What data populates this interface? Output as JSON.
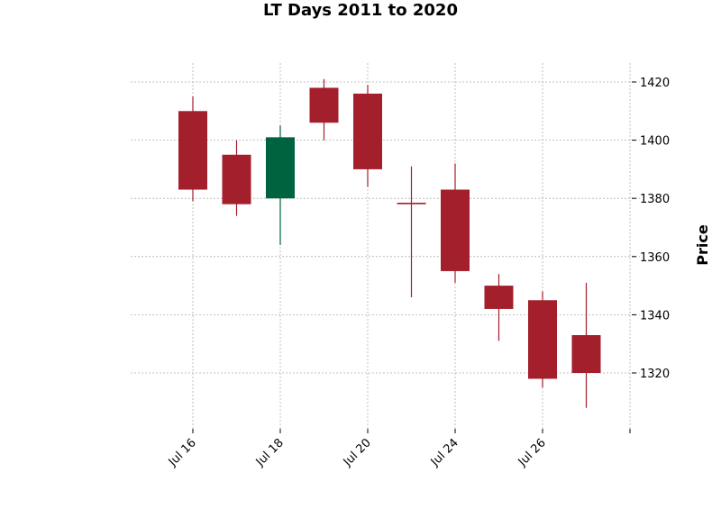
{
  "chart_data": {
    "type": "candlestick",
    "title": "LT Days 2011 to 2020",
    "ylabel": "Price",
    "xlabel": "",
    "ylim": [
      1302,
      1428
    ],
    "yticks": [
      1320,
      1340,
      1360,
      1380,
      1400,
      1420
    ],
    "grid": true,
    "colors": {
      "up": "#006340",
      "down": "#a21f2b"
    },
    "xticks": [
      {
        "index": 0,
        "label": "Jul 16"
      },
      {
        "index": 2,
        "label": "Jul 18"
      },
      {
        "index": 4,
        "label": "Jul 20"
      },
      {
        "index": 6,
        "label": "Jul 24"
      },
      {
        "index": 8,
        "label": "Jul 26"
      },
      {
        "index": 10,
        "label": ""
      }
    ],
    "candles": [
      {
        "open": 1410,
        "high": 1415,
        "low": 1379,
        "close": 1383
      },
      {
        "open": 1395,
        "high": 1400,
        "low": 1374,
        "close": 1378
      },
      {
        "open": 1380,
        "high": 1405,
        "low": 1364,
        "close": 1401
      },
      {
        "open": 1418,
        "high": 1421,
        "low": 1400,
        "close": 1406
      },
      {
        "open": 1416,
        "high": 1419,
        "low": 1384,
        "close": 1390
      },
      {
        "open": 1378.5,
        "high": 1391,
        "low": 1346,
        "close": 1378
      },
      {
        "open": 1383,
        "high": 1392,
        "low": 1351,
        "close": 1355
      },
      {
        "open": 1350,
        "high": 1354,
        "low": 1331,
        "close": 1342
      },
      {
        "open": 1345,
        "high": 1348,
        "low": 1315,
        "close": 1318
      },
      {
        "open": 1333,
        "high": 1351,
        "low": 1308,
        "close": 1320
      }
    ]
  }
}
